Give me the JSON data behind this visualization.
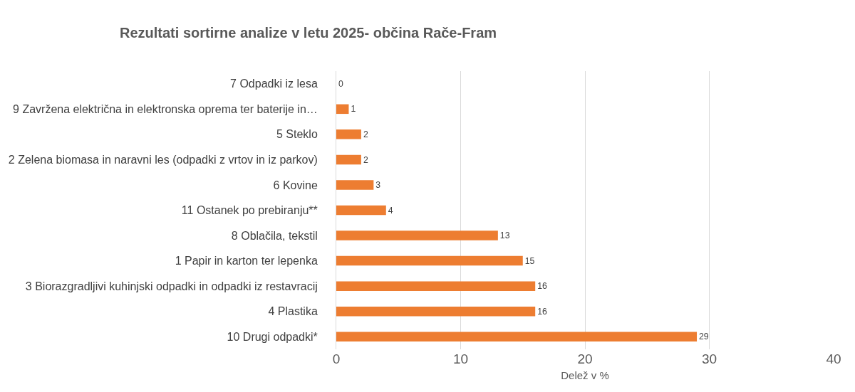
{
  "chart_data": {
    "type": "bar",
    "orientation": "horizontal",
    "title": "Rezultati sortirne analize v letu 2025- občina Rače-Fram",
    "xlabel": "Delež v %",
    "categories": [
      "7 Odpadki iz lesa",
      "9 Zavržena električna in elektronska oprema ter baterije in…",
      "5 Steklo",
      "2 Zelena biomasa in naravni les (odpadki z vrtov in iz parkov)",
      "6 Kovine",
      "11 Ostanek po prebiranju**",
      "8 Oblačila, tekstil",
      "1 Papir in karton ter lepenka",
      "3 Biorazgradljivi kuhinjski odpadki in odpadki iz restavracij",
      "4 Plastika",
      "10 Drugi odpadki*"
    ],
    "values": [
      0,
      1,
      2,
      2,
      3,
      4,
      13,
      15,
      16,
      16,
      29
    ],
    "color": "#ed7d31",
    "xlim": [
      0,
      40
    ],
    "xticks": [
      0,
      10,
      20,
      30,
      40
    ],
    "grid": "x",
    "data_labels": true,
    "legend": false
  }
}
